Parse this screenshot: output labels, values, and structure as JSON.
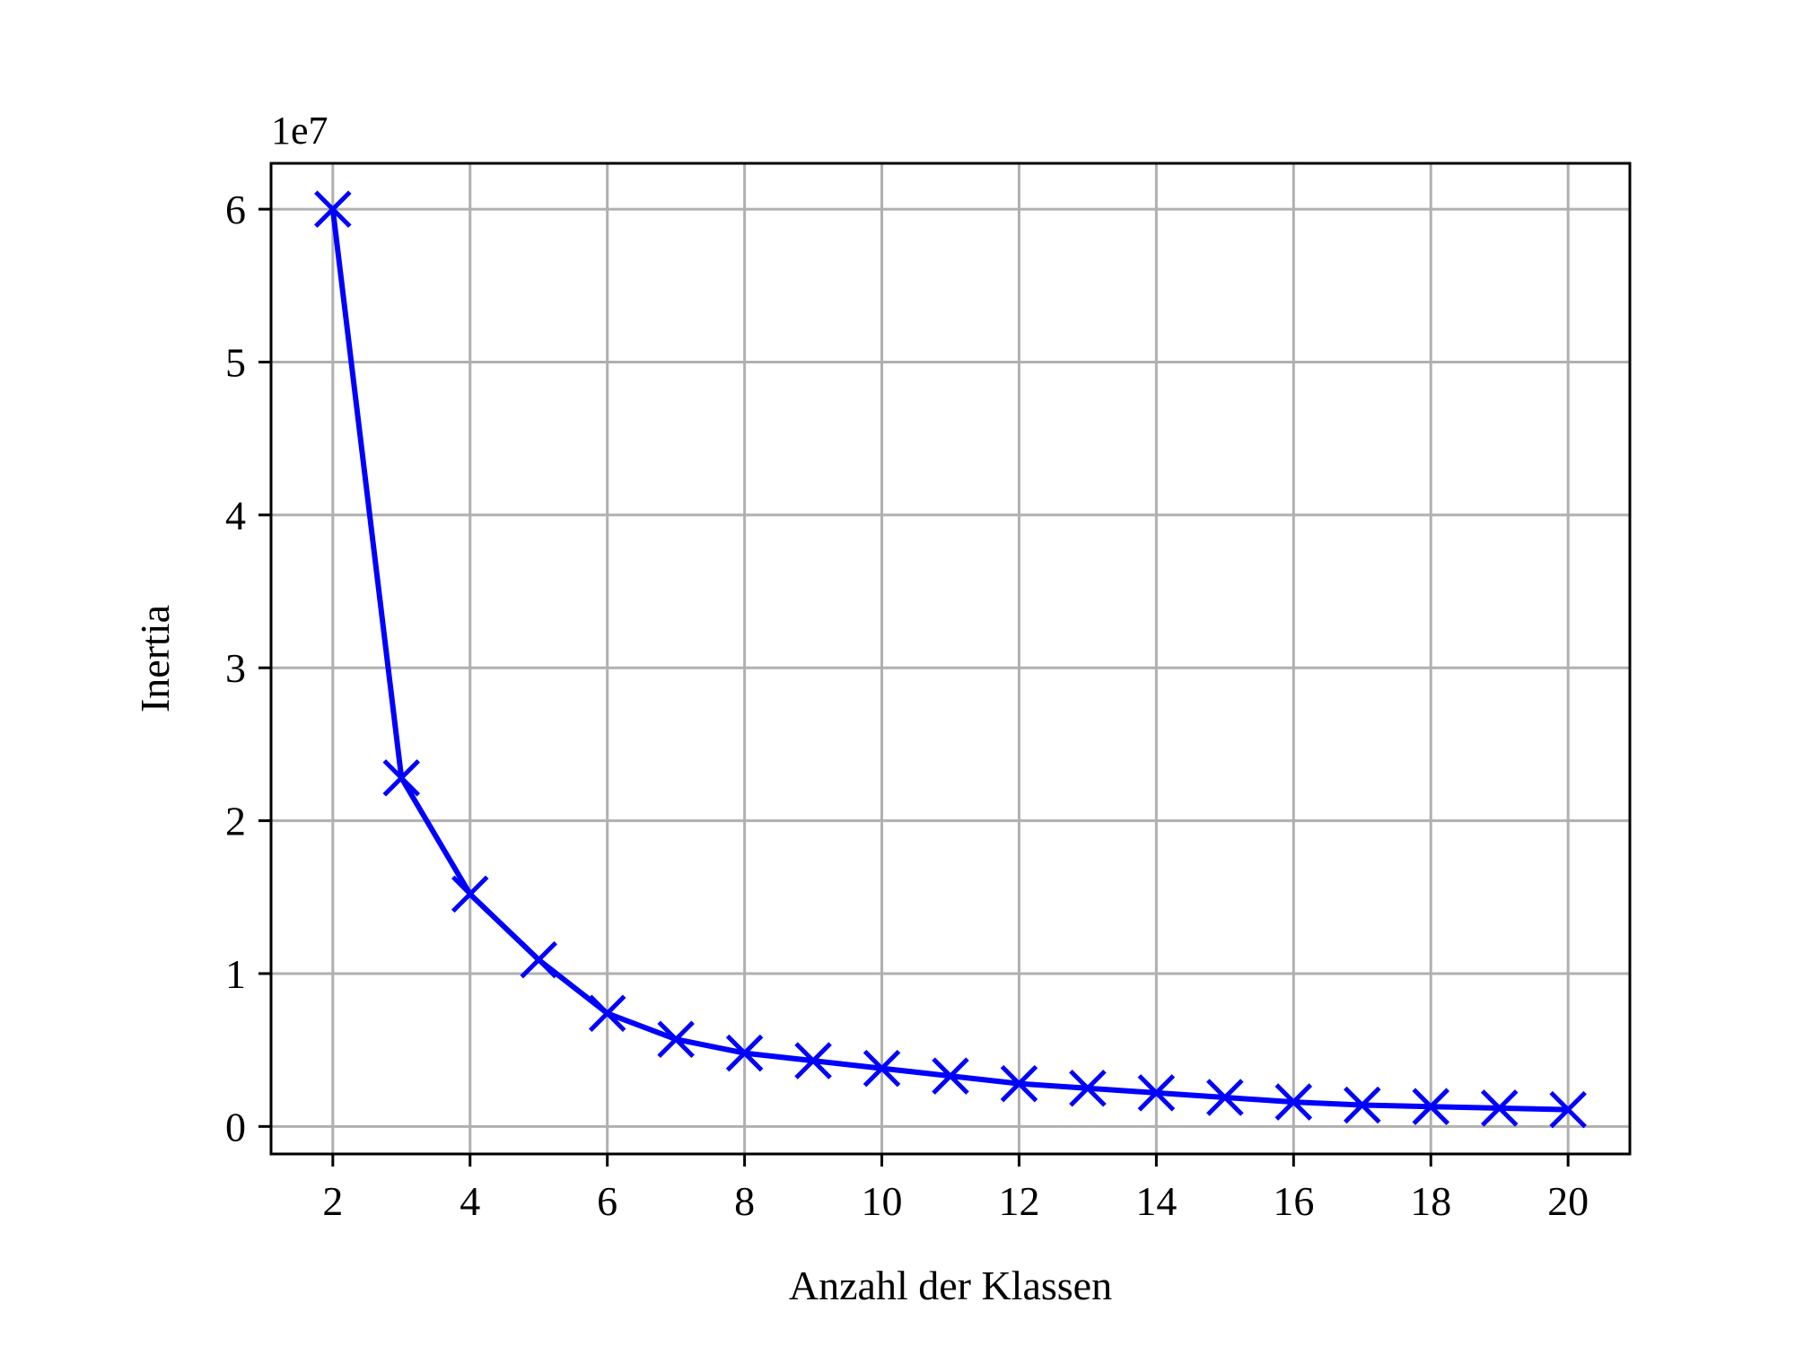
{
  "chart_data": {
    "type": "line",
    "title": "",
    "xlabel": "Anzahl der Klassen",
    "ylabel": "Inertia",
    "y_offset_label": "1e7",
    "xlim": [
      1.1,
      20.9
    ],
    "ylim": [
      -0.18,
      6.3
    ],
    "x_ticks": [
      2,
      4,
      6,
      8,
      10,
      12,
      14,
      16,
      18,
      20
    ],
    "y_ticks": [
      0,
      1,
      2,
      3,
      4,
      5,
      6
    ],
    "grid": true,
    "legend": "none",
    "series": [
      {
        "marker": "x",
        "color": "#0000ff",
        "x": [
          2,
          3,
          4,
          5,
          6,
          7,
          8,
          9,
          10,
          11,
          12,
          13,
          14,
          15,
          16,
          17,
          18,
          19,
          20
        ],
        "y": [
          6.0,
          2.28,
          1.52,
          1.09,
          0.74,
          0.57,
          0.48,
          0.43,
          0.38,
          0.33,
          0.28,
          0.25,
          0.22,
          0.19,
          0.16,
          0.14,
          0.13,
          0.12,
          0.11
        ]
      }
    ]
  }
}
